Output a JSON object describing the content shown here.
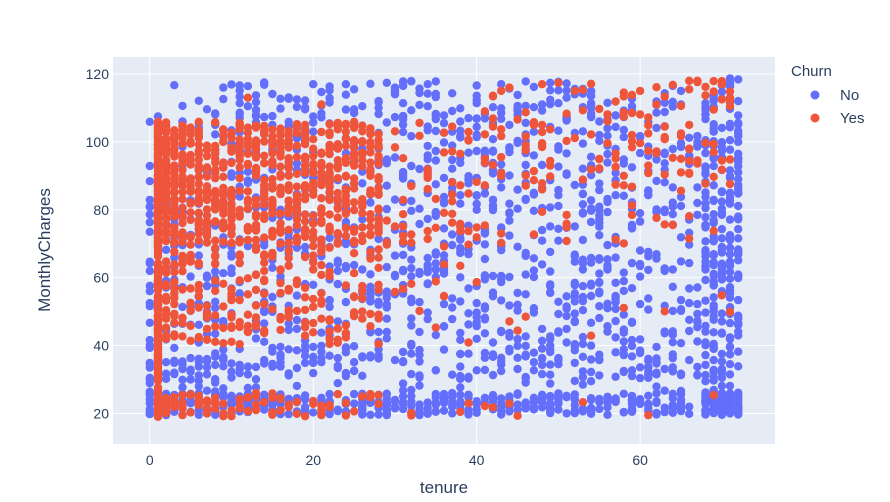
{
  "chart_data": {
    "type": "scatter",
    "title": "",
    "xlabel": "tenure",
    "ylabel": "MonthlyCharges",
    "xlim": [
      -4.5,
      76.5
    ],
    "ylim": [
      11,
      125
    ],
    "xticks": [
      0,
      20,
      40,
      60
    ],
    "yticks": [
      20,
      40,
      60,
      80,
      100,
      120
    ],
    "grid": true,
    "legend": {
      "title": "Churn",
      "placement": "top-right"
    },
    "series": [
      {
        "name": "No",
        "color": "#636efa",
        "points": []
      },
      {
        "name": "Yes",
        "color": "#ef553b",
        "points": []
      }
    ]
  }
}
